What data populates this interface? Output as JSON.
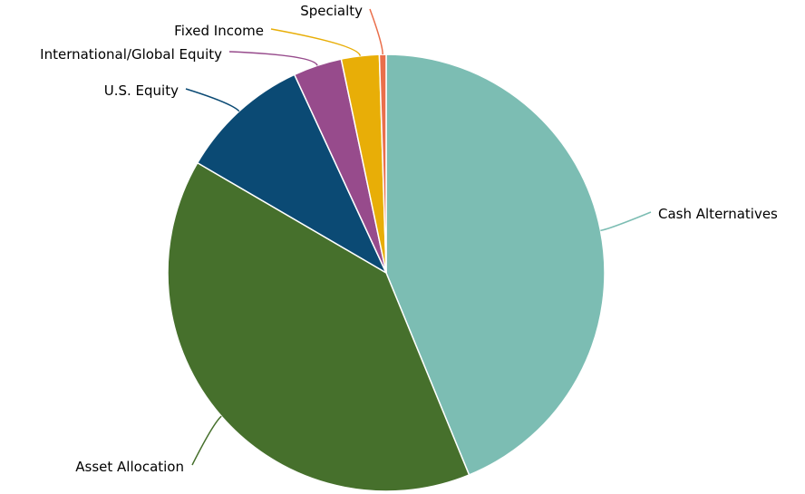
{
  "chart_data": {
    "type": "pie",
    "title": "",
    "slices": [
      {
        "label": "Cash Alternatives",
        "value": 43.8,
        "color": "#7cbdb3"
      },
      {
        "label": "Asset Allocation",
        "value": 39.6,
        "color": "#46702c"
      },
      {
        "label": "U.S. Equity",
        "value": 9.7,
        "color": "#0b4a74"
      },
      {
        "label": "International/Global Equity",
        "value": 3.6,
        "color": "#974b8c"
      },
      {
        "label": "Fixed Income",
        "value": 2.8,
        "color": "#e8ae07"
      },
      {
        "label": "Specialty",
        "value": 0.5,
        "color": "#ea6f4b"
      }
    ],
    "legend": "none"
  }
}
